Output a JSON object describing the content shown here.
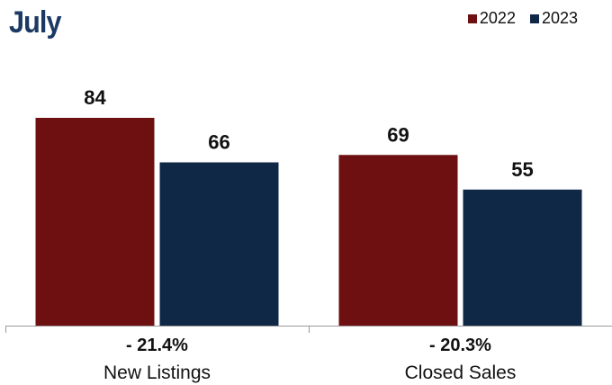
{
  "chart_data": {
    "type": "bar",
    "title": "July",
    "categories": [
      "New Listings",
      "Closed Sales"
    ],
    "series": [
      {
        "name": "2022",
        "values": [
          84,
          69
        ],
        "color": "#6e1012"
      },
      {
        "name": "2023",
        "values": [
          66,
          55
        ],
        "color": "#0f2846"
      }
    ],
    "percent_change": [
      "- 21.4%",
      "- 20.3%"
    ],
    "ylim": [
      0,
      100
    ],
    "grid": false,
    "legend_position": "top-right"
  }
}
